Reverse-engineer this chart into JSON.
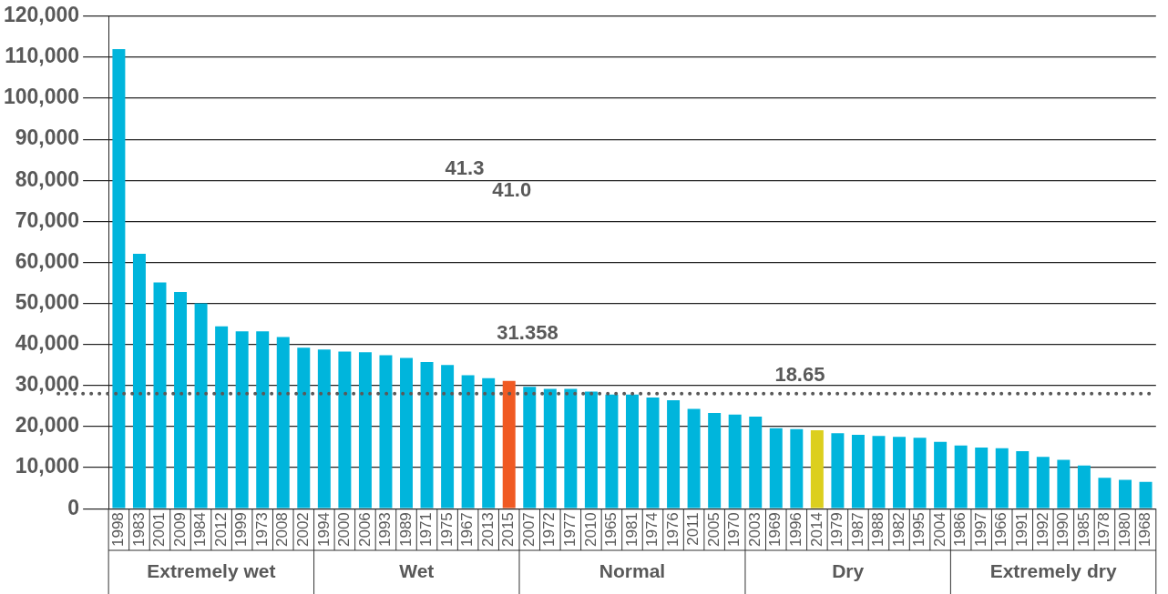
{
  "chart_data": {
    "type": "bar",
    "categories": [
      "1998",
      "1983",
      "2001",
      "2009",
      "1984",
      "2012",
      "1999",
      "1973",
      "2008",
      "2002",
      "1994",
      "2000",
      "2006",
      "1993",
      "1989",
      "1971",
      "1975",
      "1967",
      "2013",
      "2015",
      "2007",
      "1972",
      "1977",
      "2010",
      "1965",
      "1981",
      "1974",
      "1976",
      "2011",
      "2005",
      "1970",
      "2003",
      "1969",
      "1996",
      "2014",
      "1979",
      "1987",
      "1988",
      "1982",
      "1995",
      "2004",
      "1986",
      "1997",
      "1966",
      "1991",
      "1992",
      "1990",
      "1985",
      "1978",
      "1980",
      "1968"
    ],
    "values": [
      112000,
      62100,
      55100,
      52800,
      50000,
      44400,
      43200,
      43200,
      41800,
      39200,
      38800,
      38300,
      38100,
      37400,
      36700,
      35700,
      35000,
      32500,
      31800,
      31100,
      29700,
      29200,
      29200,
      28500,
      27800,
      27800,
      27100,
      26400,
      24300,
      23300,
      22900,
      22400,
      19600,
      19400,
      19100,
      18400,
      18000,
      17700,
      17500,
      17300,
      16300,
      15400,
      14900,
      14700,
      14000,
      12600,
      11900,
      10500,
      7500,
      7000,
      6500
    ],
    "colors": [
      "#00b5dc",
      "#00b5dc",
      "#00b5dc",
      "#00b5dc",
      "#00b5dc",
      "#00b5dc",
      "#00b5dc",
      "#00b5dc",
      "#00b5dc",
      "#00b5dc",
      "#00b5dc",
      "#00b5dc",
      "#00b5dc",
      "#00b5dc",
      "#00b5dc",
      "#00b5dc",
      "#00b5dc",
      "#00b5dc",
      "#00b5dc",
      "#f05a23",
      "#00b5dc",
      "#00b5dc",
      "#00b5dc",
      "#00b5dc",
      "#00b5dc",
      "#00b5dc",
      "#00b5dc",
      "#00b5dc",
      "#00b5dc",
      "#00b5dc",
      "#00b5dc",
      "#00b5dc",
      "#00b5dc",
      "#00b5dc",
      "#dccf1e",
      "#00b5dc",
      "#00b5dc",
      "#00b5dc",
      "#00b5dc",
      "#00b5dc",
      "#00b5dc",
      "#00b5dc",
      "#00b5dc",
      "#00b5dc",
      "#00b5dc",
      "#00b5dc",
      "#00b5dc",
      "#00b5dc",
      "#00b5dc",
      "#00b5dc",
      "#00b5dc"
    ],
    "ylim": [
      0,
      120000
    ],
    "yticks": [
      {
        "value": 0,
        "label": "0"
      },
      {
        "value": 10000,
        "label": "10,000"
      },
      {
        "value": 20000,
        "label": "20,000"
      },
      {
        "value": 30000,
        "label": "30,000"
      },
      {
        "value": 40000,
        "label": "40,000"
      },
      {
        "value": 50000,
        "label": "50,000"
      },
      {
        "value": 60000,
        "label": "60,000"
      },
      {
        "value": 70000,
        "label": "70,000"
      },
      {
        "value": 80000,
        "label": "80,000"
      },
      {
        "value": 90000,
        "label": "90,000"
      },
      {
        "value": 100000,
        "label": "100,000"
      },
      {
        "value": 110000,
        "label": "110,000"
      },
      {
        "value": 120000,
        "label": "120,000"
      }
    ],
    "grid": "y",
    "legend": false,
    "ref_lines": [
      {
        "axis": "y",
        "value": 28000,
        "color": "#595959",
        "line_style": "dotted"
      }
    ],
    "annotations": [
      "41.3",
      "41.0",
      "31.358",
      "18.65",
      "Extremely wet",
      "Wet",
      "Normal",
      "Dry",
      "Extremely dry"
    ]
  }
}
